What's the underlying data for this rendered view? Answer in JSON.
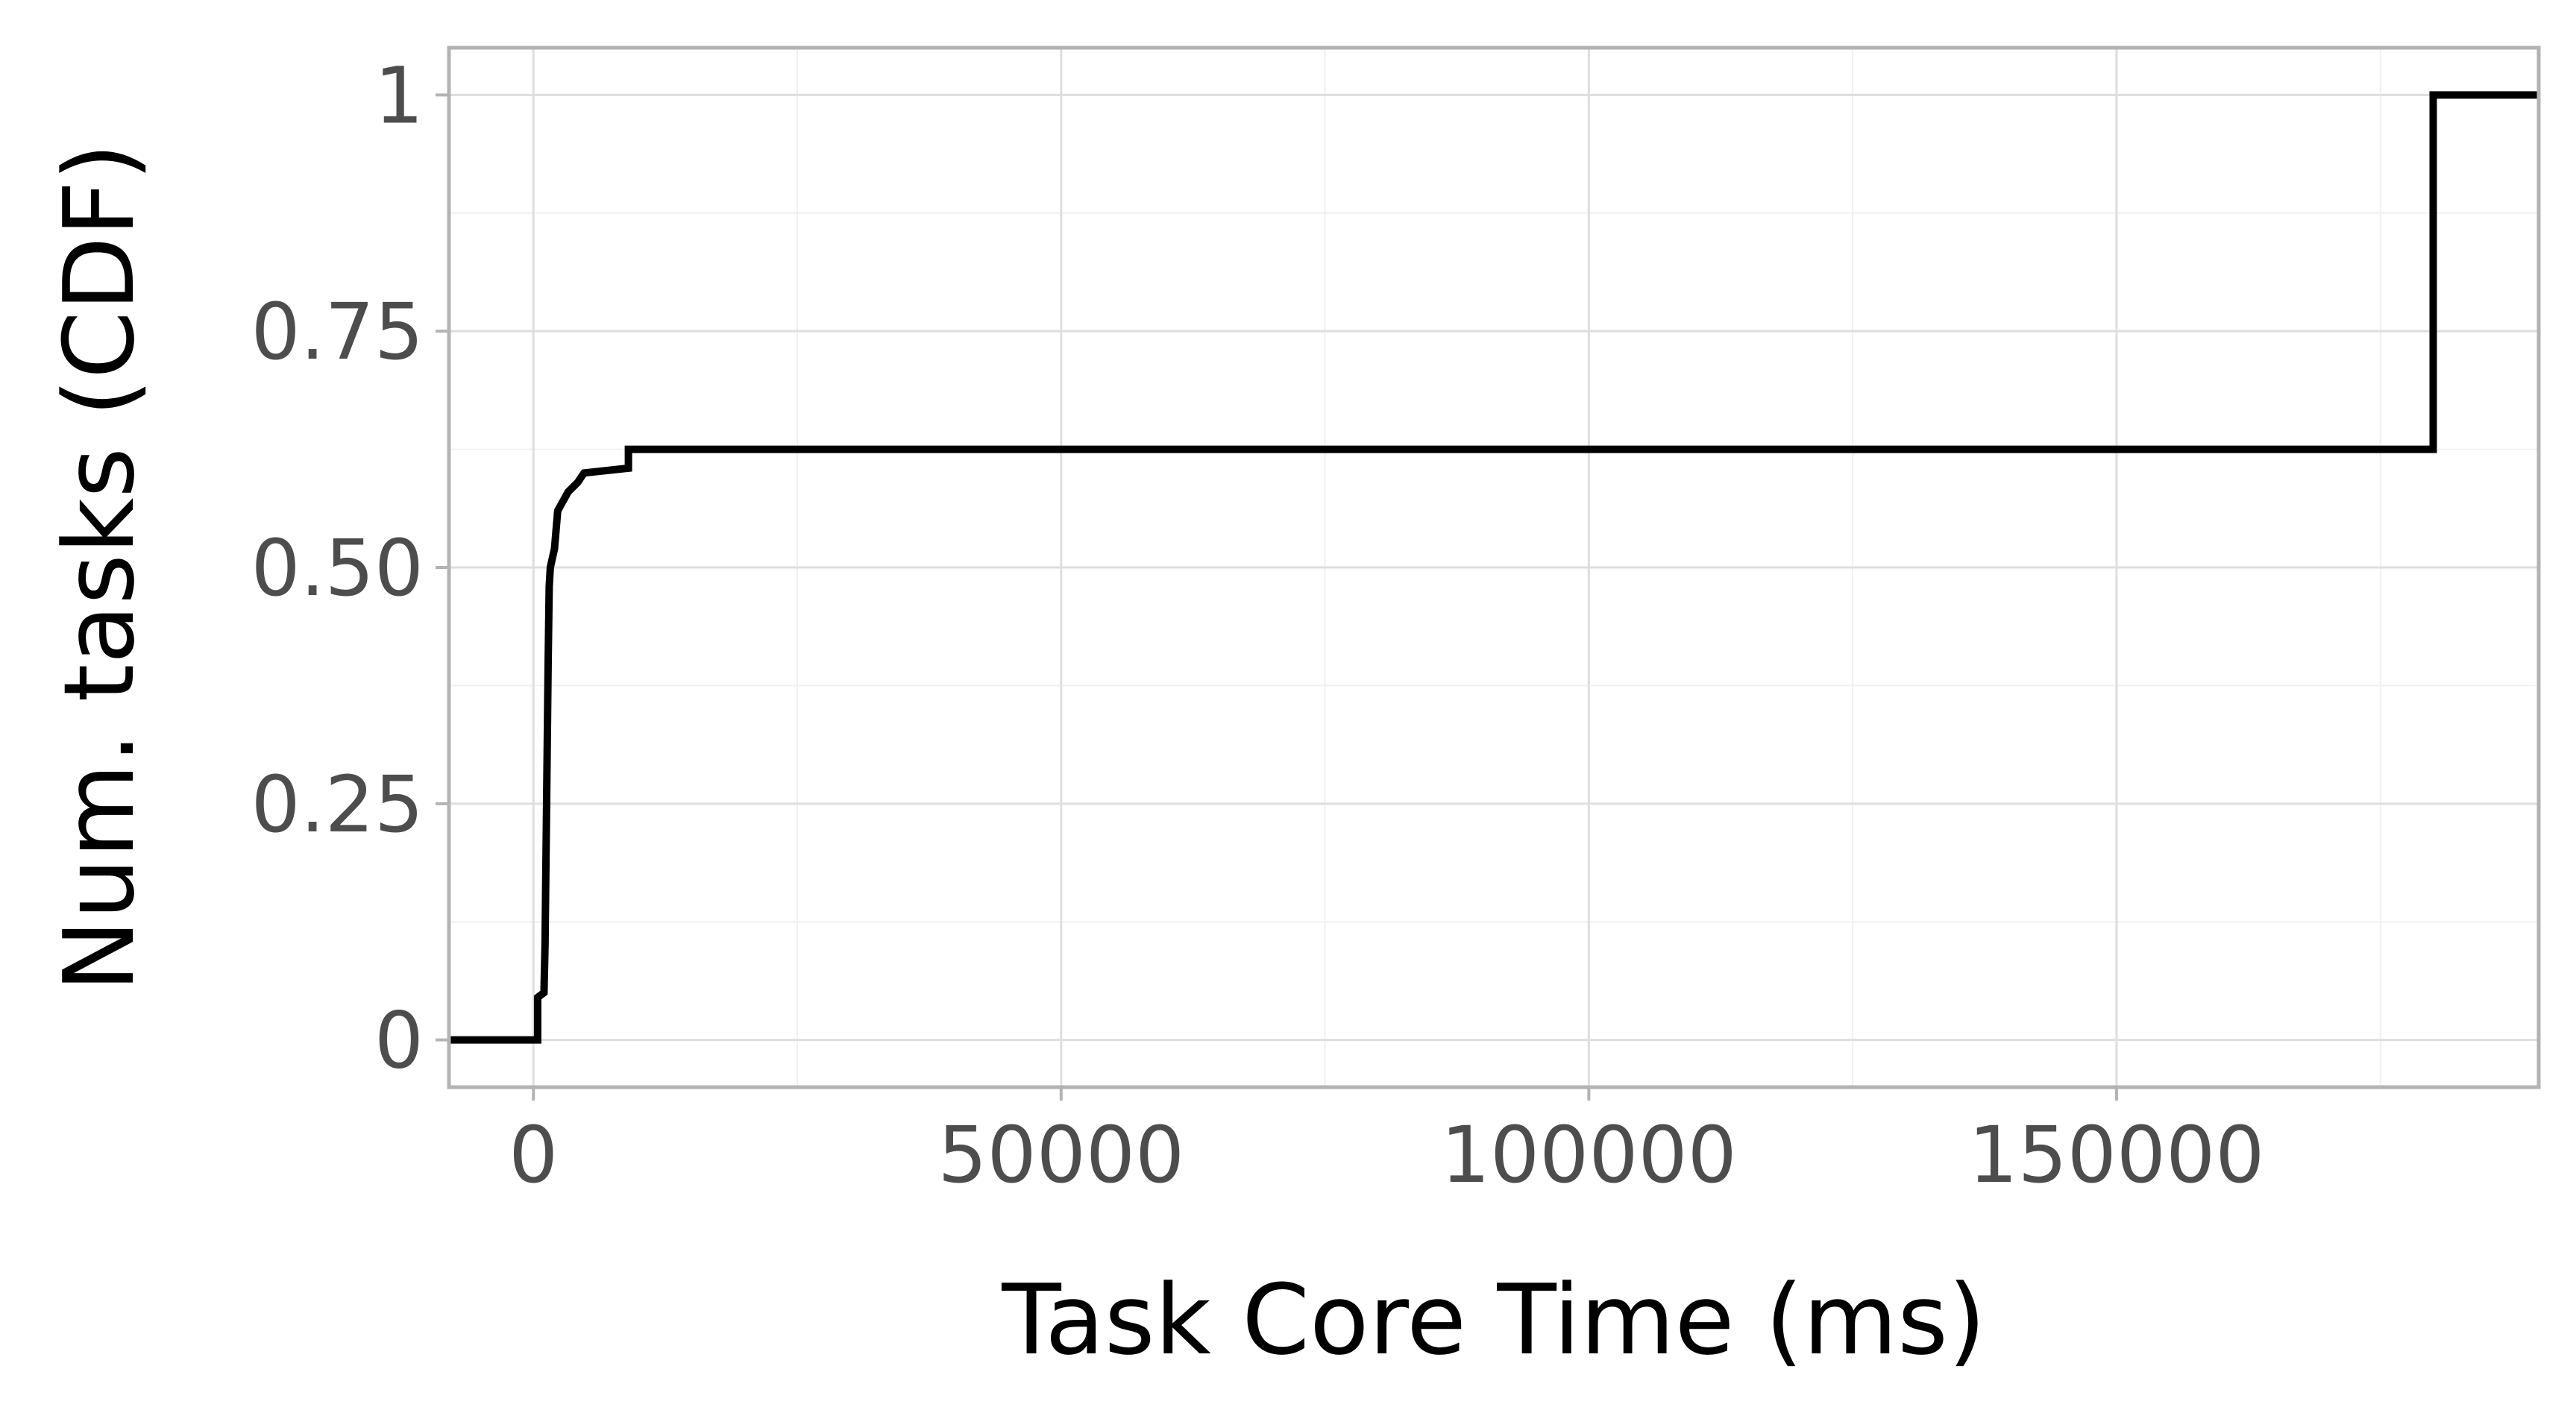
{
  "chart_data": {
    "type": "line",
    "step": true,
    "xlabel": "Task Core Time (ms)",
    "ylabel": "Num. tasks (CDF)",
    "xlim": [
      -8000,
      190000
    ],
    "ylim": [
      -0.05,
      1.05
    ],
    "x_ticks": [
      {
        "value": 0,
        "label": "0"
      },
      {
        "value": 50000,
        "label": "50000"
      },
      {
        "value": 100000,
        "label": "100000"
      },
      {
        "value": 150000,
        "label": "150000"
      }
    ],
    "y_ticks": [
      {
        "value": 0,
        "label": "0"
      },
      {
        "value": 0.25,
        "label": "0.25"
      },
      {
        "value": 0.5,
        "label": "0.50"
      },
      {
        "value": 0.75,
        "label": "0.75"
      },
      {
        "value": 1,
        "label": "1"
      }
    ],
    "grid": true,
    "legend": "none",
    "series": [
      {
        "color": "#000000",
        "points": [
          {
            "x": -8000,
            "y": 0
          },
          {
            "x": 400,
            "y": 0
          },
          {
            "x": 400,
            "y": 0.045
          },
          {
            "x": 1000,
            "y": 0.05
          },
          {
            "x": 1100,
            "y": 0.1
          },
          {
            "x": 1200,
            "y": 0.2
          },
          {
            "x": 1300,
            "y": 0.3
          },
          {
            "x": 1400,
            "y": 0.4
          },
          {
            "x": 1500,
            "y": 0.48
          },
          {
            "x": 1600,
            "y": 0.5
          },
          {
            "x": 2000,
            "y": 0.52
          },
          {
            "x": 2300,
            "y": 0.56
          },
          {
            "x": 2800,
            "y": 0.57
          },
          {
            "x": 3300,
            "y": 0.58
          },
          {
            "x": 4200,
            "y": 0.59
          },
          {
            "x": 4800,
            "y": 0.6
          },
          {
            "x": 9000,
            "y": 0.605
          },
          {
            "x": 9000,
            "y": 0.625
          },
          {
            "x": 180000,
            "y": 0.625
          },
          {
            "x": 180000,
            "y": 1
          },
          {
            "x": 190000,
            "y": 1
          }
        ]
      }
    ]
  }
}
